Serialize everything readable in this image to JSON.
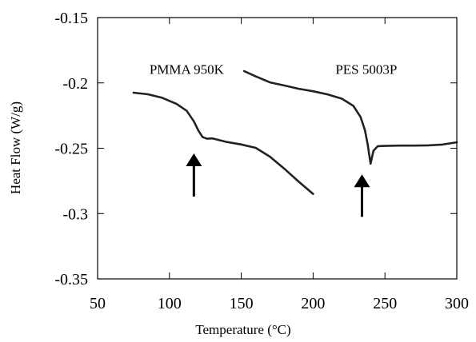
{
  "chart_data": {
    "type": "line",
    "title": "",
    "xlabel": "Temperature (°C)",
    "ylabel": "Heat Flow (W/g)",
    "xlim": [
      50,
      300
    ],
    "ylim": [
      -0.35,
      -0.15
    ],
    "x_ticks": [
      50,
      100,
      150,
      200,
      250,
      300
    ],
    "y_ticks": [
      -0.15,
      -0.2,
      -0.25,
      -0.3,
      -0.35
    ],
    "x_tick_labels": [
      "50",
      "100",
      "150",
      "200",
      "250",
      "300"
    ],
    "y_tick_labels": [
      "-0.15",
      "-0.2",
      "-0.25",
      "-0.3",
      "-0.35"
    ],
    "grid": false,
    "legend": "none",
    "series": [
      {
        "name": "PMMA 950K",
        "x": [
          75,
          85,
          95,
          105,
          112,
          117,
          120,
          123,
          126,
          130,
          140,
          150,
          160,
          170,
          180,
          190,
          200
        ],
        "y": [
          -0.2075,
          -0.2087,
          -0.2114,
          -0.2161,
          -0.2214,
          -0.2294,
          -0.2361,
          -0.2414,
          -0.2427,
          -0.2425,
          -0.2452,
          -0.2471,
          -0.2497,
          -0.2565,
          -0.2657,
          -0.2756,
          -0.285
        ]
      },
      {
        "name": "PES 5003P",
        "x": [
          152,
          160,
          170,
          180,
          190,
          200,
          210,
          220,
          228,
          233,
          236,
          238,
          240,
          242,
          245,
          250,
          260,
          270,
          280,
          290,
          300
        ],
        "y": [
          -0.191,
          -0.195,
          -0.1996,
          -0.202,
          -0.2045,
          -0.2064,
          -0.2088,
          -0.2121,
          -0.2176,
          -0.2261,
          -0.236,
          -0.247,
          -0.2618,
          -0.252,
          -0.2484,
          -0.2482,
          -0.248,
          -0.248,
          -0.2478,
          -0.2472,
          -0.2455
        ]
      }
    ],
    "annotations": [
      {
        "text": "PMMA 950K",
        "x": 112,
        "y": -0.193
      },
      {
        "text": "PES 5003P",
        "x": 237,
        "y": -0.193
      },
      {
        "type": "arrow",
        "x": 117,
        "y_from": -0.287,
        "y_to": -0.254
      },
      {
        "type": "arrow",
        "x": 234,
        "y_from": -0.3025,
        "y_to": -0.27
      }
    ]
  }
}
